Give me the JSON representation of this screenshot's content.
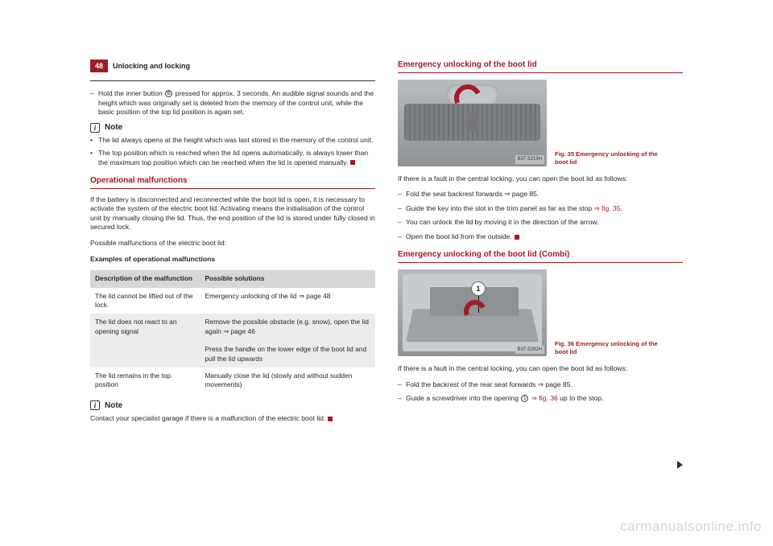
{
  "pageNumber": "48",
  "sectionTitle": "Unlocking and locking",
  "col1": {
    "topBullet": {
      "pre": "Hold the inner button ",
      "circ": "B",
      "post": " pressed for approx. 3 seconds. An audible signal sounds and the height which was originally set is deleted from the memory of the control unit, while the basic position of the top lid position is again set."
    },
    "noteLabel": "Note",
    "noteBullets": [
      "The lid always opens at the height which was last stored in the memory of the control unit.",
      "The top position which is reached when the lid opens automatically, is always lower than the maximum top position which can be reached when the lid is opened manually."
    ],
    "opHeading": "Operational malfunctions",
    "opPara1": "If the battery is disconnected and reconnected while the boot lid is open, it is necessary to activate the system of the electric boot lid. Activating means the initialisation of the control unit by manually closing the lid. Thus, the end position of the lid is stored under fully closed in secured lock.",
    "opPara2": "Possible malfunctions of the electric boot lid:",
    "tableTitle": "Examples of operational malfunctions",
    "table": {
      "head": [
        "Description of the malfunction",
        "Possible solutions"
      ],
      "rows": [
        [
          "The lid cannot be lifted out of the lock.",
          "Emergency unlocking of the lid ⇒ page 48"
        ],
        [
          "The lid does not react to an opening signal",
          "Remove the possible obstacle (e.g. snow), open the lid again ⇒ page 46\n\nPress the handle on the lower edge of the boot lid and pull the lid upwards"
        ],
        [
          "The lid remains in the top position",
          "Manually close the lid (slowly and without sudden movements)"
        ]
      ]
    },
    "note2Label": "Note",
    "note2Text": "Contact your specialist garage if there is a malfunction of the electric boot lid."
  },
  "col2": {
    "em1Heading": "Emergency unlocking of the boot lid",
    "fig35": {
      "label": "B3T-5215H",
      "caption": "Fig. 35  Emergency unlocking of the boot lid"
    },
    "em1Intro": "If there is a fault in the central locking, you can open the boot lid as follows:",
    "em1Steps": [
      {
        "text": "Fold the seat backrest forwards ⇒ page 85."
      },
      {
        "pre": "Guide the key into the slot in the trim panel as far as the stop ",
        "ref": "⇒ fig. 35",
        "post": "."
      },
      {
        "text": "You can unlock the lid by moving it in the direction of the arrow."
      },
      {
        "text": "Open the boot lid from the outside.",
        "stop": true
      }
    ],
    "em2Heading": "Emergency unlocking of the boot lid (Combi)",
    "fig36": {
      "label": "B3T-5292H",
      "badge": "1",
      "caption": "Fig. 36  Emergency unlocking of the boot lid"
    },
    "em2Intro": "If there is a fault in the central locking, you can open the boot lid as follows:",
    "em2Steps": [
      {
        "text": "Fold the backrest of the rear seat forwards ⇒ page 85."
      },
      {
        "pre": "Guide a screwdriver into the opening ",
        "circ": "1",
        "mid": " ",
        "ref": "⇒ fig. 36",
        "post": " up to the stop."
      }
    ]
  },
  "watermark": "carmanualsonline.info"
}
